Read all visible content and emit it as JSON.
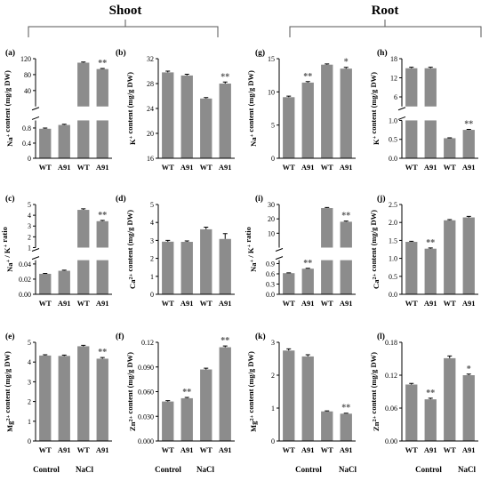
{
  "header": {
    "left_title": "Shoot",
    "right_title": "Root"
  },
  "conditions": [
    "Control",
    "NaCl"
  ],
  "chart_data": [
    {
      "id": "a",
      "type": "bar",
      "panel_label": "(a)",
      "categories": [
        "WT",
        "A91",
        "WT",
        "A91"
      ],
      "values": [
        0.78,
        0.88,
        110,
        94
      ],
      "errors": [
        0.02,
        0.02,
        1.5,
        1.5
      ],
      "significance": [
        "",
        "",
        "",
        "**"
      ],
      "ylabel": "Na+ content (mg/g DW)",
      "axis_break": true,
      "y_lower": {
        "ylim": [
          0,
          1.0
        ],
        "ticks": [
          "0",
          "0.4",
          "0.8"
        ]
      },
      "y_upper": {
        "ylim": [
          0,
          120
        ],
        "ticks": [
          "40",
          "80",
          "120"
        ]
      }
    },
    {
      "id": "b",
      "type": "bar",
      "panel_label": "(b)",
      "categories": [
        "WT",
        "A91",
        "WT",
        "A91"
      ],
      "values": [
        29.8,
        29.3,
        25.6,
        28
      ],
      "errors": [
        0.2,
        0.2,
        0.15,
        0.25
      ],
      "significance": [
        "",
        "",
        "",
        "**"
      ],
      "ylabel": "K+ content (mg/g DW)",
      "ylim": [
        16,
        32
      ],
      "yticks": [
        {
          "v": 16,
          "l": "16"
        },
        {
          "v": 20,
          "l": "20"
        },
        {
          "v": 24,
          "l": "24"
        },
        {
          "v": 28,
          "l": "28"
        },
        {
          "v": 32,
          "l": "32"
        }
      ]
    },
    {
      "id": "c",
      "type": "bar",
      "panel_label": "(c)",
      "categories": [
        "WT",
        "A91",
        "WT",
        "A91"
      ],
      "values": [
        0.027,
        0.031,
        4.5,
        3.45
      ],
      "errors": [
        0.0005,
        0.0008,
        0.1,
        0.08
      ],
      "significance": [
        "",
        "",
        "",
        "**"
      ],
      "ylabel": "Na+ / K+ ratio",
      "axis_break": true,
      "y_lower": {
        "ylim": [
          0,
          0.045
        ],
        "ticks": [
          "0.00",
          "0.02",
          "0.04"
        ]
      },
      "y_upper": {
        "ylim": [
          1,
          5
        ],
        "ticks": [
          "1",
          "2",
          "3",
          "4",
          "5"
        ]
      }
    },
    {
      "id": "d",
      "type": "bar",
      "panel_label": "(d)",
      "categories": [
        "WT",
        "A91",
        "WT",
        "A91"
      ],
      "values": [
        2.93,
        2.92,
        3.62,
        3.08
      ],
      "errors": [
        0.07,
        0.05,
        0.12,
        0.3
      ],
      "significance": [
        "",
        "",
        "",
        ""
      ],
      "ylabel": "Ca2+ content (mg/g DW)",
      "ylim": [
        0,
        5
      ],
      "yticks": [
        {
          "v": 0,
          "l": "0"
        },
        {
          "v": 1,
          "l": "1"
        },
        {
          "v": 2,
          "l": "2"
        },
        {
          "v": 3,
          "l": "3"
        },
        {
          "v": 4,
          "l": "4"
        },
        {
          "v": 5,
          "l": "5"
        }
      ]
    },
    {
      "id": "g",
      "type": "bar",
      "panel_label": "(g)",
      "categories": [
        "WT",
        "A91",
        "WT",
        "A91"
      ],
      "values": [
        9.2,
        11.4,
        14.1,
        13.5
      ],
      "errors": [
        0.15,
        0.15,
        0.12,
        0.2
      ],
      "significance": [
        "",
        "**",
        "",
        "*"
      ],
      "ylabel": "Na+ content (mg/g DW)",
      "ylim": [
        0,
        15
      ],
      "yticks": [
        {
          "v": 0,
          "l": "0"
        },
        {
          "v": 5,
          "l": "5"
        },
        {
          "v": 10,
          "l": "10"
        },
        {
          "v": 15,
          "l": "15"
        }
      ]
    },
    {
      "id": "h",
      "type": "bar",
      "panel_label": "(h)",
      "categories": [
        "WT",
        "A91",
        "WT",
        "A91"
      ],
      "values": [
        15,
        15,
        0.53,
        0.75
      ],
      "errors": [
        0.3,
        0.3,
        0.01,
        0.015
      ],
      "significance": [
        "",
        "",
        "",
        "**"
      ],
      "ylabel": "K+ content (mg/g DW)",
      "axis_break": true,
      "y_lower": {
        "ylim": [
          0,
          1.0
        ],
        "ticks": [
          "0.0",
          "0.5",
          "1.0"
        ]
      },
      "y_upper": {
        "ylim": [
          3,
          18
        ],
        "ticks": [
          "6",
          "12",
          "18"
        ]
      }
    },
    {
      "id": "i",
      "type": "bar",
      "panel_label": "(i)",
      "categories": [
        "WT",
        "A91",
        "WT",
        "A91"
      ],
      "values": [
        0.62,
        0.75,
        27.5,
        18
      ],
      "errors": [
        0.01,
        0.012,
        0.4,
        0.5
      ],
      "significance": [
        "",
        "**",
        "",
        "**"
      ],
      "ylabel": "Na+ / K+ ratio",
      "axis_break": true,
      "y_lower": {
        "ylim": [
          0,
          1.0
        ],
        "ticks": [
          "0.0",
          "0.3",
          "0.6",
          "0.9"
        ]
      },
      "y_upper": {
        "ylim": [
          0,
          30
        ],
        "ticks": [
          "10",
          "20",
          "30"
        ]
      }
    },
    {
      "id": "j",
      "type": "bar",
      "panel_label": "(j)",
      "categories": [
        "WT",
        "A91",
        "WT",
        "A91"
      ],
      "values": [
        1.46,
        1.27,
        2.06,
        2.14
      ],
      "errors": [
        0.015,
        0.02,
        0.02,
        0.03
      ],
      "significance": [
        "",
        "**",
        "",
        ""
      ],
      "ylabel": "Ca2+ content (mg/g DW)",
      "ylim": [
        0,
        2.5
      ],
      "yticks": [
        {
          "v": 0,
          "l": "0.0"
        },
        {
          "v": 0.5,
          "l": "0.5"
        },
        {
          "v": 1,
          "l": "1.0"
        },
        {
          "v": 1.5,
          "l": "1.5"
        },
        {
          "v": 2,
          "l": "2.0"
        },
        {
          "v": 2.5,
          "l": "2.5"
        }
      ]
    },
    {
      "id": "e",
      "type": "bar",
      "panel_label": "(e)",
      "categories": [
        "WT",
        "A91",
        "WT",
        "A91"
      ],
      "values": [
        4.33,
        4.31,
        4.8,
        4.17
      ],
      "errors": [
        0.04,
        0.04,
        0.05,
        0.06
      ],
      "significance": [
        "",
        "",
        "",
        "**"
      ],
      "ylabel": "Mg2+ content (mg/g DW)",
      "ylim": [
        0,
        5
      ],
      "yticks": [
        {
          "v": 0,
          "l": "0"
        },
        {
          "v": 1,
          "l": "1"
        },
        {
          "v": 2,
          "l": "2"
        },
        {
          "v": 3,
          "l": "3"
        },
        {
          "v": 4,
          "l": "4"
        },
        {
          "v": 5,
          "l": "5"
        }
      ]
    },
    {
      "id": "f",
      "type": "bar",
      "panel_label": "(f)",
      "categories": [
        "WT",
        "A91",
        "WT",
        "A91"
      ],
      "values": [
        0.048,
        0.052,
        0.087,
        0.114
      ],
      "errors": [
        0.001,
        0.001,
        0.0015,
        0.0015
      ],
      "significance": [
        "",
        "**",
        "",
        "**"
      ],
      "ylabel": "Zn2+ content (mg/g DW)",
      "ylim": [
        0,
        0.12
      ],
      "yticks": [
        {
          "v": 0,
          "l": "0.000"
        },
        {
          "v": 0.03,
          "l": "0.030"
        },
        {
          "v": 0.06,
          "l": "0.060"
        },
        {
          "v": 0.09,
          "l": "0.090"
        },
        {
          "v": 0.12,
          "l": "0.12"
        }
      ]
    },
    {
      "id": "k",
      "type": "bar",
      "panel_label": "(k)",
      "categories": [
        "WT",
        "A91",
        "WT",
        "A91"
      ],
      "values": [
        2.75,
        2.57,
        0.9,
        0.83
      ],
      "errors": [
        0.05,
        0.05,
        0.015,
        0.015
      ],
      "significance": [
        "",
        "",
        "",
        "**"
      ],
      "ylabel": "Mg2+ content (mg/g DW)",
      "ylim": [
        0,
        3
      ],
      "yticks": [
        {
          "v": 0,
          "l": "0"
        },
        {
          "v": 1,
          "l": "1"
        },
        {
          "v": 2,
          "l": "2"
        },
        {
          "v": 3,
          "l": "3"
        }
      ]
    },
    {
      "id": "l",
      "type": "bar",
      "panel_label": "(l)",
      "categories": [
        "WT",
        "A91",
        "WT",
        "A91"
      ],
      "values": [
        0.103,
        0.076,
        0.151,
        0.12
      ],
      "errors": [
        0.002,
        0.002,
        0.004,
        0.002
      ],
      "significance": [
        "",
        "**",
        "",
        "*"
      ],
      "ylabel": "Zn2+ content (mg/g DW)",
      "ylim": [
        0,
        0.18
      ],
      "yticks": [
        {
          "v": 0,
          "l": "0.00"
        },
        {
          "v": 0.06,
          "l": "0.06"
        },
        {
          "v": 0.12,
          "l": "0.12"
        },
        {
          "v": 0.18,
          "l": "0.18"
        }
      ]
    }
  ],
  "colors": {
    "bar": "#8c8c8c",
    "axis": "#000000",
    "sig": "#555555"
  }
}
